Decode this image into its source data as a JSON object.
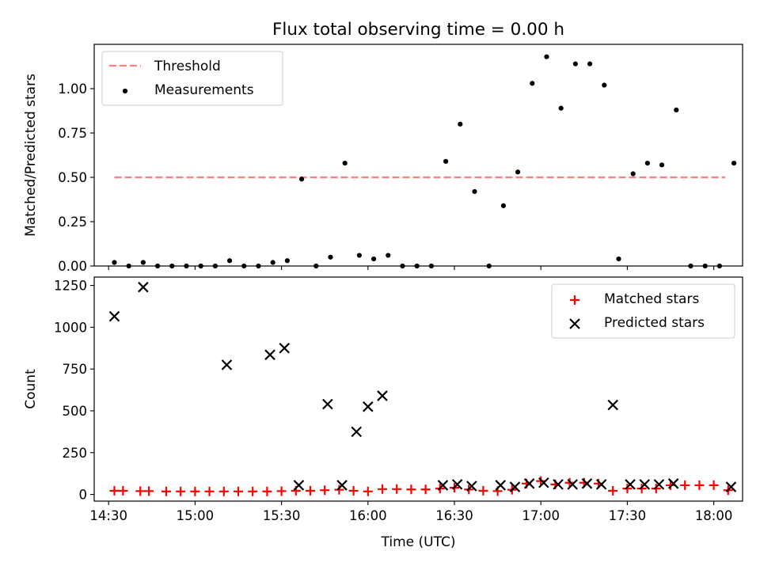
{
  "chart_data": [
    {
      "type": "scatter",
      "title": "Flux total observing time = 0.00 h",
      "xlabel": "",
      "ylabel": "Matched/Predicted stars",
      "xlim": [
        "14:25",
        "18:10"
      ],
      "ylim": [
        0,
        1.25
      ],
      "x_ticks": [
        "14:30",
        "15:00",
        "15:30",
        "16:00",
        "16:30",
        "17:00",
        "17:30",
        "18:00"
      ],
      "y_ticks": [
        "0.00",
        "0.25",
        "0.50",
        "0.75",
        "1.00"
      ],
      "legend_position": "upper left",
      "series": [
        {
          "name": "Threshold",
          "style": "dashed-line",
          "color": "#ff7f7f",
          "points": [
            {
              "x": "14:32",
              "y": 0.5
            },
            {
              "x": "18:04",
              "y": 0.5
            }
          ]
        },
        {
          "name": "Measurements",
          "style": "dot",
          "color": "#000000",
          "points": [
            {
              "x": "14:32",
              "y": 0.02
            },
            {
              "x": "14:37",
              "y": 0.0
            },
            {
              "x": "14:42",
              "y": 0.02
            },
            {
              "x": "14:47",
              "y": 0.0
            },
            {
              "x": "14:52",
              "y": 0.0
            },
            {
              "x": "14:57",
              "y": 0.0
            },
            {
              "x": "15:02",
              "y": 0.0
            },
            {
              "x": "15:07",
              "y": 0.0
            },
            {
              "x": "15:12",
              "y": 0.03
            },
            {
              "x": "15:17",
              "y": 0.0
            },
            {
              "x": "15:22",
              "y": 0.0
            },
            {
              "x": "15:27",
              "y": 0.02
            },
            {
              "x": "15:32",
              "y": 0.03
            },
            {
              "x": "15:37",
              "y": 0.49
            },
            {
              "x": "15:42",
              "y": 0.0
            },
            {
              "x": "15:47",
              "y": 0.05
            },
            {
              "x": "15:52",
              "y": 0.58
            },
            {
              "x": "15:57",
              "y": 0.06
            },
            {
              "x": "16:02",
              "y": 0.04
            },
            {
              "x": "16:07",
              "y": 0.06
            },
            {
              "x": "16:12",
              "y": 0.0
            },
            {
              "x": "16:17",
              "y": 0.0
            },
            {
              "x": "16:22",
              "y": 0.0
            },
            {
              "x": "16:27",
              "y": 0.59
            },
            {
              "x": "16:32",
              "y": 0.8
            },
            {
              "x": "16:37",
              "y": 0.42
            },
            {
              "x": "16:42",
              "y": 0.0
            },
            {
              "x": "16:47",
              "y": 0.34
            },
            {
              "x": "16:52",
              "y": 0.53
            },
            {
              "x": "16:57",
              "y": 1.03
            },
            {
              "x": "17:02",
              "y": 1.18
            },
            {
              "x": "17:07",
              "y": 0.89
            },
            {
              "x": "17:12",
              "y": 1.14
            },
            {
              "x": "17:17",
              "y": 1.14
            },
            {
              "x": "17:22",
              "y": 1.02
            },
            {
              "x": "17:27",
              "y": 0.04
            },
            {
              "x": "17:32",
              "y": 0.52
            },
            {
              "x": "17:37",
              "y": 0.58
            },
            {
              "x": "17:42",
              "y": 0.57
            },
            {
              "x": "17:47",
              "y": 0.88
            },
            {
              "x": "17:52",
              "y": 0.0
            },
            {
              "x": "17:57",
              "y": 0.0
            },
            {
              "x": "18:02",
              "y": 0.0
            },
            {
              "x": "18:07",
              "y": 0.58
            }
          ]
        }
      ]
    },
    {
      "type": "scatter",
      "title": "",
      "xlabel": "Time (UTC)",
      "ylabel": "Count",
      "xlim": [
        "14:25",
        "18:10"
      ],
      "ylim": [
        -40,
        1300
      ],
      "x_ticks": [
        "14:30",
        "15:00",
        "15:30",
        "16:00",
        "16:30",
        "17:00",
        "17:30",
        "18:00"
      ],
      "y_ticks": [
        "0",
        "250",
        "500",
        "750",
        "1000",
        "1250"
      ],
      "legend_position": "upper right",
      "series": [
        {
          "name": "Matched stars",
          "style": "plus",
          "color": "#ff0000",
          "points": [
            {
              "x": "14:32",
              "y": 22
            },
            {
              "x": "14:35",
              "y": 22
            },
            {
              "x": "14:41",
              "y": 20
            },
            {
              "x": "14:44",
              "y": 20
            },
            {
              "x": "14:50",
              "y": 18
            },
            {
              "x": "14:55",
              "y": 18
            },
            {
              "x": "15:00",
              "y": 18
            },
            {
              "x": "15:05",
              "y": 18
            },
            {
              "x": "15:10",
              "y": 18
            },
            {
              "x": "15:15",
              "y": 18
            },
            {
              "x": "15:20",
              "y": 18
            },
            {
              "x": "15:25",
              "y": 18
            },
            {
              "x": "15:30",
              "y": 20
            },
            {
              "x": "15:35",
              "y": 22
            },
            {
              "x": "15:40",
              "y": 22
            },
            {
              "x": "15:45",
              "y": 25
            },
            {
              "x": "15:50",
              "y": 28
            },
            {
              "x": "15:55",
              "y": 22
            },
            {
              "x": "16:00",
              "y": 18
            },
            {
              "x": "16:05",
              "y": 32
            },
            {
              "x": "16:10",
              "y": 32
            },
            {
              "x": "16:15",
              "y": 30
            },
            {
              "x": "16:20",
              "y": 30
            },
            {
              "x": "16:25",
              "y": 35
            },
            {
              "x": "16:30",
              "y": 40
            },
            {
              "x": "16:35",
              "y": 30
            },
            {
              "x": "16:40",
              "y": 22
            },
            {
              "x": "16:45",
              "y": 20
            },
            {
              "x": "16:50",
              "y": 28
            },
            {
              "x": "16:55",
              "y": 65
            },
            {
              "x": "17:00",
              "y": 80
            },
            {
              "x": "17:05",
              "y": 60
            },
            {
              "x": "17:10",
              "y": 70
            },
            {
              "x": "17:15",
              "y": 70
            },
            {
              "x": "17:20",
              "y": 65
            },
            {
              "x": "17:25",
              "y": 22
            },
            {
              "x": "17:30",
              "y": 35
            },
            {
              "x": "17:35",
              "y": 35
            },
            {
              "x": "17:40",
              "y": 35
            },
            {
              "x": "17:45",
              "y": 55
            },
            {
              "x": "17:50",
              "y": 55
            },
            {
              "x": "17:55",
              "y": 55
            },
            {
              "x": "18:00",
              "y": 55
            },
            {
              "x": "18:05",
              "y": 25
            }
          ]
        },
        {
          "name": "Predicted stars",
          "style": "x",
          "color": "#000000",
          "points": [
            {
              "x": "14:32",
              "y": 1065
            },
            {
              "x": "14:42",
              "y": 1240
            },
            {
              "x": "15:11",
              "y": 775
            },
            {
              "x": "15:26",
              "y": 835
            },
            {
              "x": "15:31",
              "y": 875
            },
            {
              "x": "15:36",
              "y": 55
            },
            {
              "x": "15:46",
              "y": 540
            },
            {
              "x": "15:51",
              "y": 55
            },
            {
              "x": "15:56",
              "y": 375
            },
            {
              "x": "16:00",
              "y": 525
            },
            {
              "x": "16:05",
              "y": 590
            },
            {
              "x": "16:26",
              "y": 55
            },
            {
              "x": "16:31",
              "y": 60
            },
            {
              "x": "16:36",
              "y": 50
            },
            {
              "x": "16:46",
              "y": 55
            },
            {
              "x": "16:51",
              "y": 45
            },
            {
              "x": "16:56",
              "y": 65
            },
            {
              "x": "17:01",
              "y": 70
            },
            {
              "x": "17:06",
              "y": 60
            },
            {
              "x": "17:11",
              "y": 60
            },
            {
              "x": "17:16",
              "y": 65
            },
            {
              "x": "17:21",
              "y": 60
            },
            {
              "x": "17:25",
              "y": 535
            },
            {
              "x": "17:31",
              "y": 60
            },
            {
              "x": "17:36",
              "y": 60
            },
            {
              "x": "17:41",
              "y": 60
            },
            {
              "x": "17:46",
              "y": 65
            },
            {
              "x": "18:06",
              "y": 45
            }
          ]
        }
      ]
    }
  ]
}
